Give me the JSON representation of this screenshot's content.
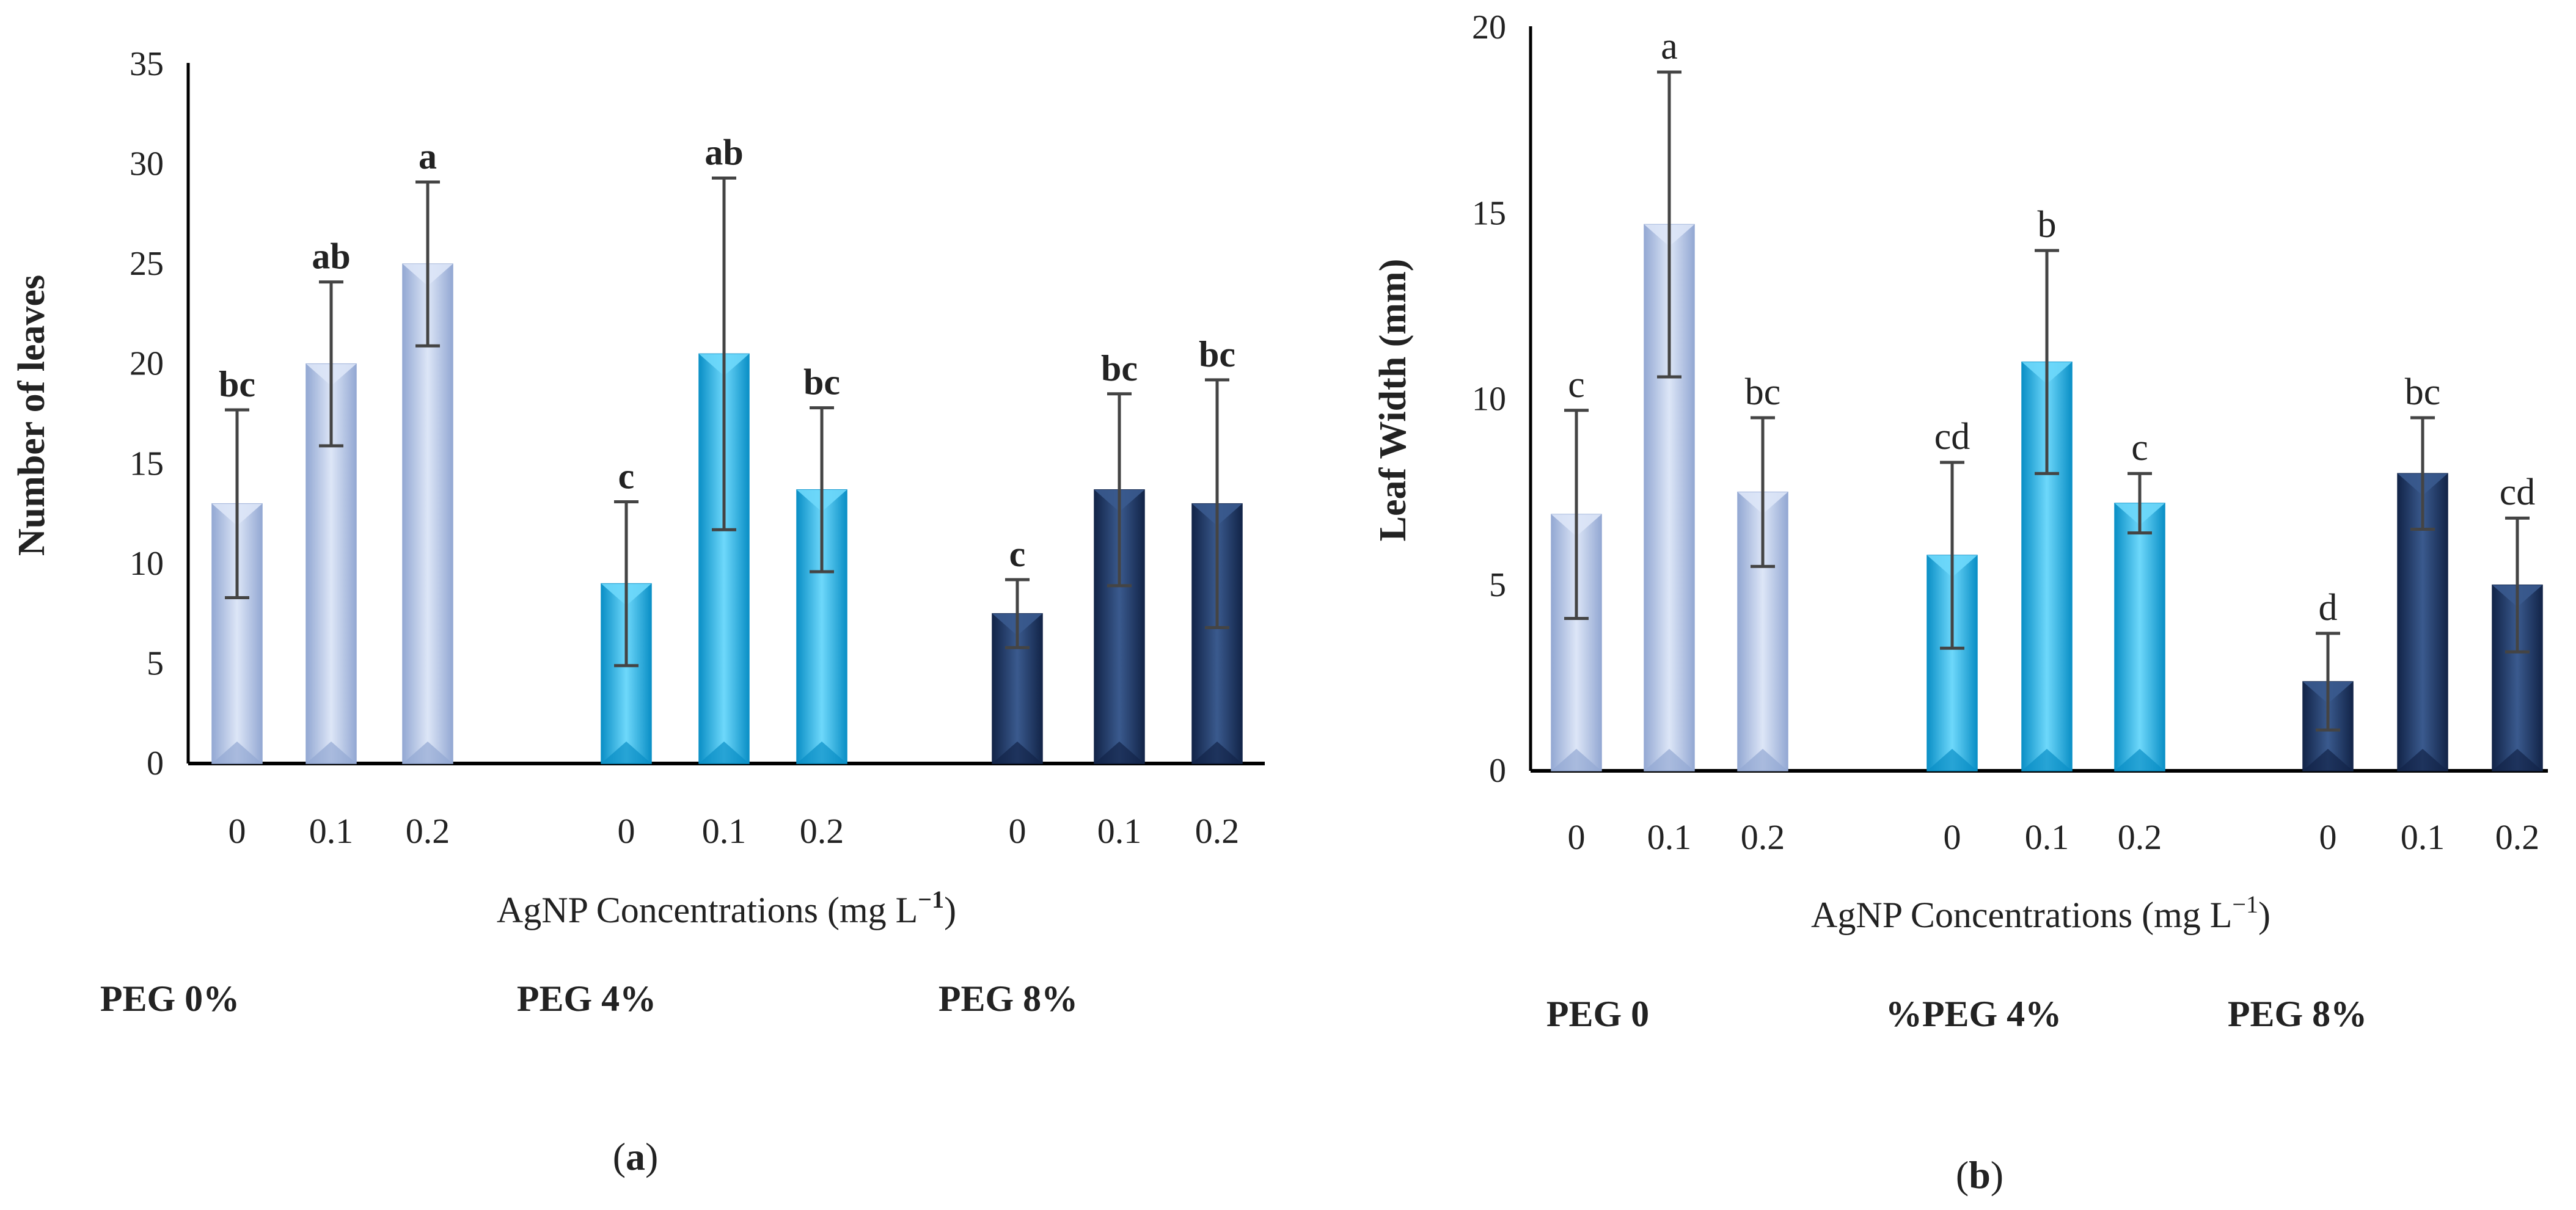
{
  "chart_data": [
    {
      "type": "bar",
      "panel_label": "(a)",
      "ylabel": "Number of leaves",
      "xlabel": "AgNP Concentrations (mg L",
      "xlabel_sup": "−1",
      "xlabel_close": ")",
      "ylim": [
        0,
        35
      ],
      "yticks": [
        0,
        5,
        10,
        15,
        20,
        25,
        30,
        35
      ],
      "letter_style": "bold",
      "groups": [
        {
          "name": "PEG 0%",
          "color": "light-blue",
          "categories": [
            "0",
            "0.1",
            "0.2"
          ],
          "values": [
            13,
            20,
            25
          ],
          "errors": [
            4.7,
            4.1,
            4.1
          ],
          "letters": [
            "bc",
            "ab",
            "a"
          ]
        },
        {
          "name": "PEG 4%",
          "color": "cyan",
          "categories": [
            "0",
            "0.1",
            "0.2"
          ],
          "values": [
            9,
            20.5,
            13.7
          ],
          "errors": [
            4.1,
            8.8,
            4.1
          ],
          "letters": [
            "c",
            "ab",
            "bc"
          ]
        },
        {
          "name": "PEG 8%",
          "color": "navy",
          "categories": [
            "0",
            "0.1",
            "0.2"
          ],
          "values": [
            7.5,
            13.7,
            13
          ],
          "errors": [
            1.7,
            4.8,
            6.2
          ],
          "letters": [
            "c",
            "bc",
            "bc"
          ]
        }
      ]
    },
    {
      "type": "bar",
      "panel_label": "(b)",
      "ylabel": "Leaf Width (mm)",
      "xlabel": "AgNP Concentrations (mg L",
      "xlabel_sup": "−1",
      "xlabel_close": ")",
      "ylim": [
        0,
        20
      ],
      "yticks": [
        0,
        5,
        10,
        15,
        20
      ],
      "letter_style": "normal",
      "groups": [
        {
          "name": "PEG 0",
          "color": "light-blue",
          "categories": [
            "0",
            "0.1",
            "0.2"
          ],
          "values": [
            6.9,
            14.7,
            7.5
          ],
          "errors": [
            2.8,
            4.1,
            2
          ],
          "letters": [
            "c",
            "a",
            "bc"
          ]
        },
        {
          "name": "%PEG 4%",
          "color": "cyan",
          "categories": [
            "0",
            "0.1",
            "0.2"
          ],
          "values": [
            5.8,
            11,
            7.2
          ],
          "errors": [
            2.5,
            3,
            0.8
          ],
          "letters": [
            "cd",
            "b",
            "c"
          ]
        },
        {
          "name": "PEG 8%",
          "color": "navy",
          "categories": [
            "0",
            "0.1",
            "0.2"
          ],
          "values": [
            2.4,
            8,
            5
          ],
          "errors": [
            1.3,
            1.5,
            1.8
          ],
          "letters": [
            "d",
            "bc",
            "cd"
          ]
        }
      ]
    }
  ],
  "colors": {
    "light-blue": {
      "base": "#b7c8ea",
      "light": "#dde6f7",
      "dark": "#93a8d3"
    },
    "cyan": {
      "base": "#19b6ec",
      "light": "#6ed8fb",
      "dark": "#0a8fc6"
    },
    "navy": {
      "base": "#1f3a68",
      "light": "#3a5a8e",
      "dark": "#122448"
    },
    "axis": "#000000",
    "error_bar": "#444444",
    "text": "#222222"
  }
}
